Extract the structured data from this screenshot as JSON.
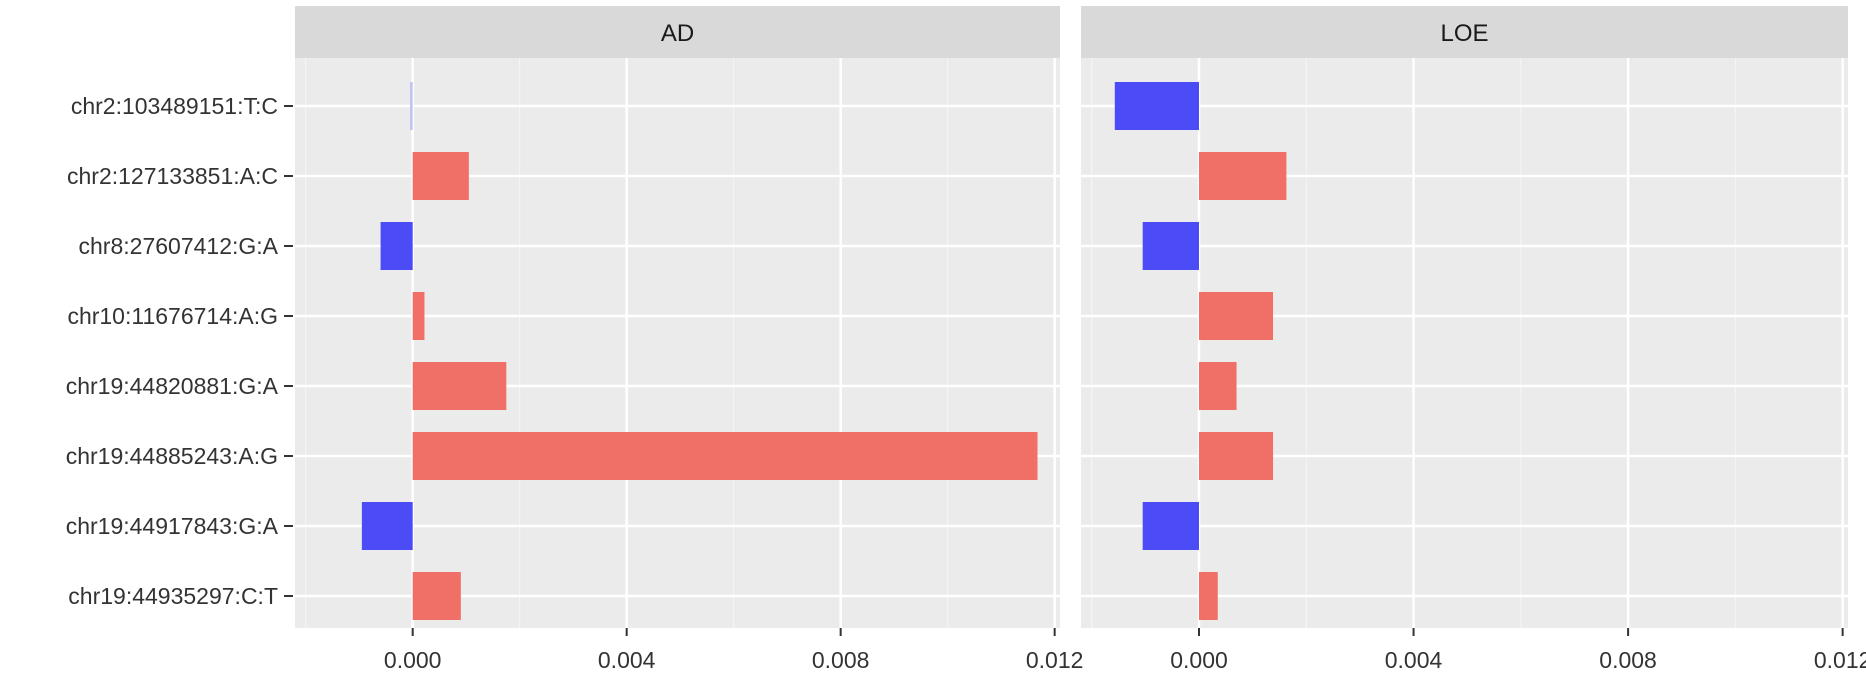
{
  "chart_data": {
    "type": "bar",
    "orientation": "horizontal",
    "facet_layout": "side-by-side",
    "categories": [
      "chr2:103489151:T:C",
      "chr2:127133851:A:C",
      "chr8:27607412:G:A",
      "chr10:11676714:A:G",
      "chr19:44820881:G:A",
      "chr19:44885243:A:G",
      "chr19:44917843:G:A",
      "chr19:44935297:C:T"
    ],
    "panels": [
      {
        "title": "AD",
        "values": [
          -5e-05,
          0.00105,
          -0.0006,
          0.00022,
          0.00175,
          0.01168,
          -0.00095,
          0.0009
        ],
        "xlim": [
          -0.0022,
          0.0121
        ]
      },
      {
        "title": "LOE",
        "values": [
          -0.00157,
          0.00163,
          -0.00105,
          0.00138,
          0.0007,
          0.00138,
          -0.00105,
          0.00035
        ],
        "xlim": [
          -0.0022,
          0.0121
        ]
      }
    ],
    "x_ticks": [
      0.0,
      0.004,
      0.008,
      0.012
    ],
    "x_tick_labels": [
      "0.000",
      "0.004",
      "0.008",
      "0.012"
    ],
    "xlabel": "",
    "ylabel": "",
    "grid": true,
    "legend": "none",
    "colors": {
      "positive": "#F07068",
      "negative": "#4C4CF6",
      "negative_faint": "#C4C4F4",
      "panel_background": "#EBEBEB",
      "strip_background": "#D9D9D9",
      "grid_major": "#FFFFFF",
      "text": "#333333"
    }
  }
}
